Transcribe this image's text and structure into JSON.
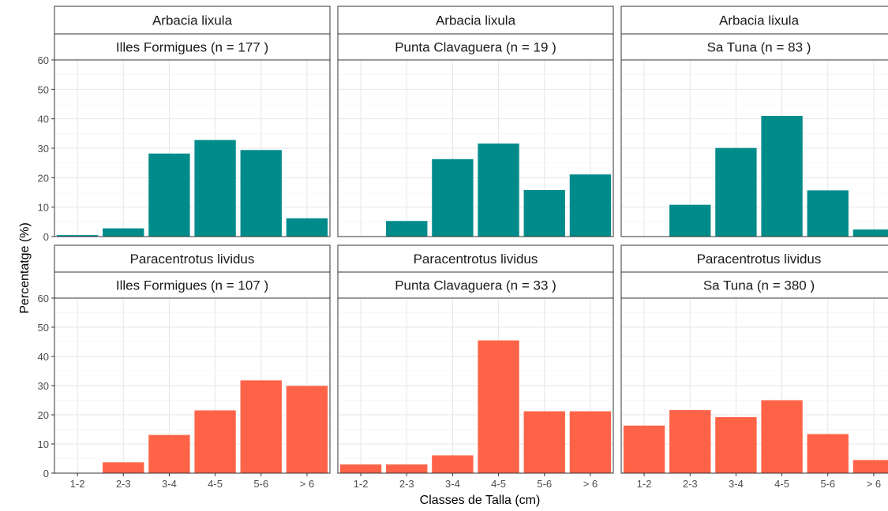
{
  "chart_data": {
    "type": "bar",
    "ylabel": "Percentatge (%)",
    "xlabel": "Classes de Talla (cm)",
    "ylim": [
      0,
      60
    ],
    "yticks": [
      0,
      10,
      20,
      30,
      40,
      50,
      60
    ],
    "grid": true,
    "categories": [
      "1-2",
      "2-3",
      "3-4",
      "4-5",
      "5-6",
      "> 6"
    ],
    "colors": {
      "arbacia": "#008B8B",
      "paracentrotus": "#FF6347"
    },
    "panels": [
      {
        "species": "Arbacia lixula",
        "site": "Illes Formigues (n =  177 )",
        "color_key": "arbacia",
        "values": [
          0.5,
          2.8,
          28.2,
          32.8,
          29.4,
          6.2
        ]
      },
      {
        "species": "Arbacia lixula",
        "site": "Punta Clavaguera (n =  19 )",
        "color_key": "arbacia",
        "values": [
          0,
          5.3,
          26.3,
          31.6,
          15.8,
          21.1
        ]
      },
      {
        "species": "Arbacia lixula",
        "site": "Sa Tuna (n =  83 )",
        "color_key": "arbacia",
        "values": [
          0,
          10.8,
          30.1,
          41.0,
          15.7,
          2.4
        ]
      },
      {
        "species": "Paracentrotus lividus",
        "site": "Illes Formigues (n =  107 )",
        "color_key": "paracentrotus",
        "values": [
          0,
          3.7,
          13.1,
          21.5,
          31.8,
          29.9
        ]
      },
      {
        "species": "Paracentrotus lividus",
        "site": "Punta Clavaguera (n =  33 )",
        "color_key": "paracentrotus",
        "values": [
          3.0,
          3.0,
          6.1,
          45.5,
          21.2,
          21.2
        ]
      },
      {
        "species": "Paracentrotus lividus",
        "site": "Sa Tuna (n =  380 )",
        "color_key": "paracentrotus",
        "values": [
          16.3,
          21.6,
          19.2,
          25.0,
          13.4,
          4.5
        ]
      }
    ]
  }
}
